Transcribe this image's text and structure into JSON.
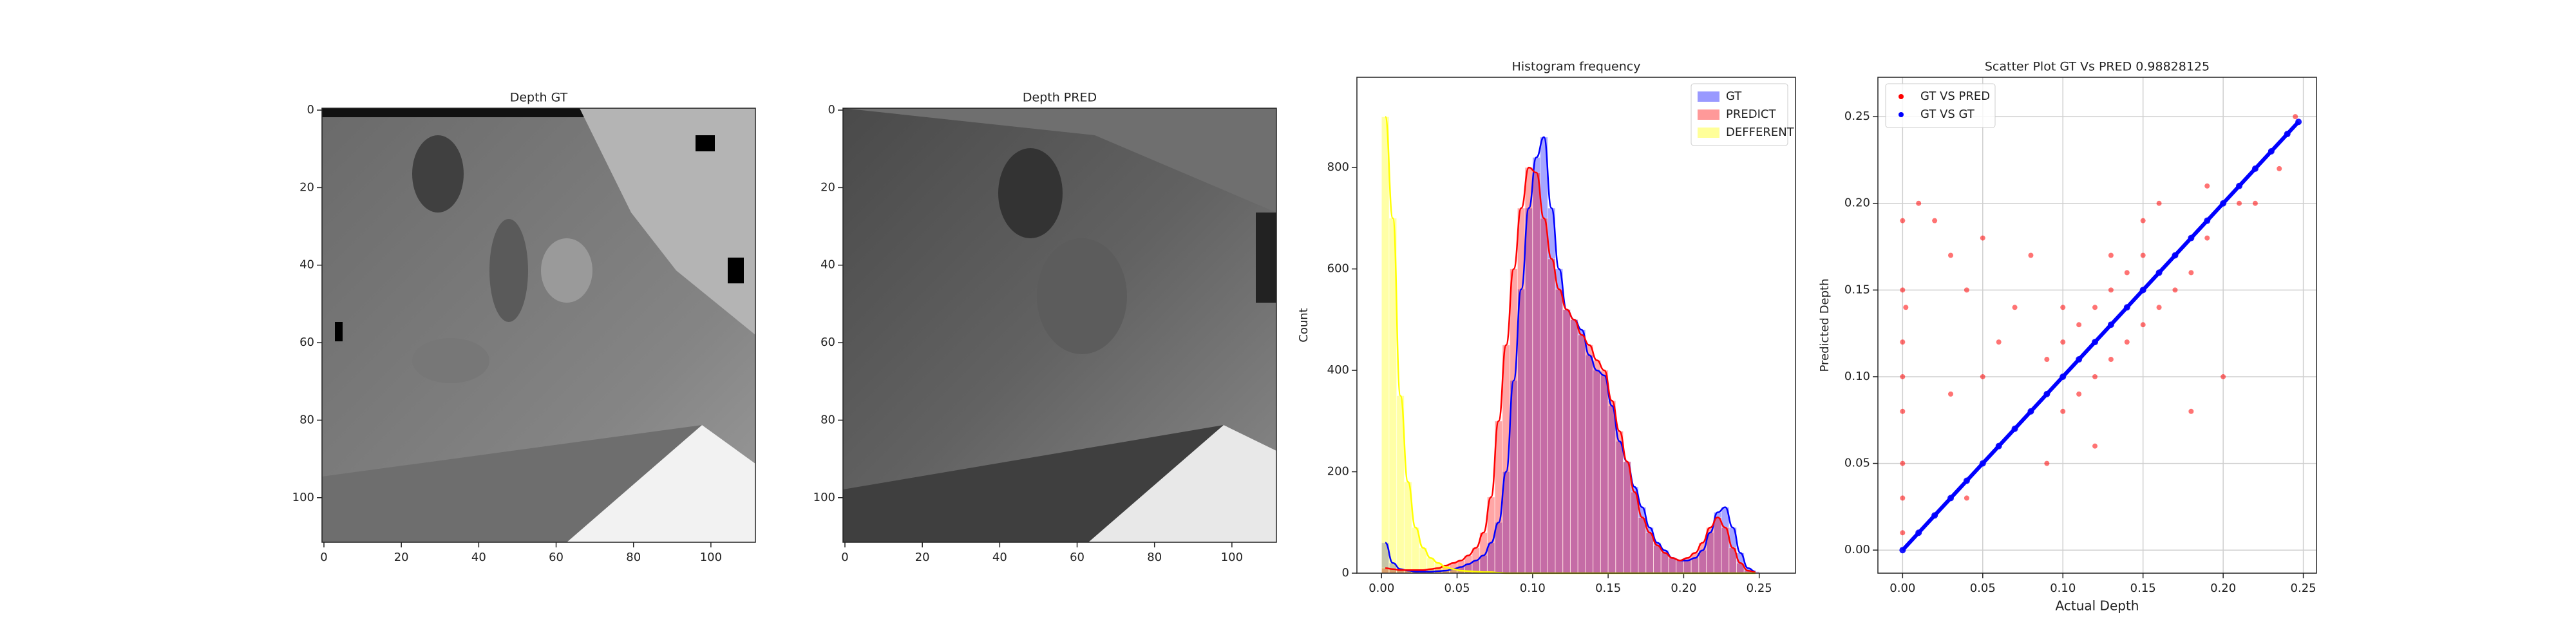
{
  "chart_data": [
    {
      "type": "image",
      "title": "Depth GT",
      "xlim": [
        -0.5,
        111.5
      ],
      "ylim": [
        111.5,
        -0.5
      ],
      "xticks": [
        0,
        20,
        40,
        60,
        80,
        100
      ],
      "yticks": [
        0,
        20,
        40,
        60,
        80,
        100
      ]
    },
    {
      "type": "image",
      "title": "Depth PRED",
      "xlim": [
        -0.5,
        111.5
      ],
      "ylim": [
        111.5,
        -0.5
      ],
      "xticks": [
        0,
        20,
        40,
        60,
        80,
        100
      ],
      "yticks": [
        0,
        20,
        40,
        60,
        80,
        100
      ]
    },
    {
      "type": "histogram",
      "title": "Histogram frequency",
      "ylabel": "Count",
      "legend": "upper right",
      "xlim": [
        -0.0163,
        0.274
      ],
      "ylim": [
        0,
        978
      ],
      "xticks": [
        {
          "value": 0,
          "label": "0.00"
        },
        {
          "value": 0.05,
          "label": "0.05"
        },
        {
          "value": 0.1,
          "label": "0.10"
        },
        {
          "value": 0.15,
          "label": "0.15"
        },
        {
          "value": 0.2,
          "label": "0.20"
        },
        {
          "value": 0.25,
          "label": "0.25"
        }
      ],
      "yticks": [
        0,
        200,
        400,
        600,
        800
      ],
      "bins": [
        0,
        0.005,
        0.01,
        0.015,
        0.02,
        0.025,
        0.03,
        0.035,
        0.04,
        0.045,
        0.05,
        0.055,
        0.06,
        0.065,
        0.07,
        0.075,
        0.08,
        0.085,
        0.09,
        0.095,
        0.1,
        0.105,
        0.11,
        0.115,
        0.12,
        0.125,
        0.13,
        0.135,
        0.14,
        0.145,
        0.15,
        0.155,
        0.16,
        0.165,
        0.17,
        0.175,
        0.18,
        0.185,
        0.19,
        0.195,
        0.2,
        0.205,
        0.21,
        0.215,
        0.22,
        0.225,
        0.23,
        0.235,
        0.24,
        0.245,
        0.25
      ],
      "series": [
        {
          "name": "GT",
          "color": "#0000ff",
          "values": [
            60,
            20,
            8,
            5,
            3,
            3,
            3,
            4,
            5,
            8,
            12,
            18,
            25,
            35,
            60,
            100,
            200,
            380,
            560,
            720,
            820,
            860,
            720,
            600,
            520,
            500,
            480,
            430,
            400,
            390,
            330,
            260,
            220,
            170,
            130,
            90,
            60,
            45,
            30,
            25,
            25,
            30,
            45,
            80,
            120,
            130,
            90,
            40,
            10,
            3
          ]
        },
        {
          "name": "PREDICT",
          "color": "#ff0000",
          "values": [
            10,
            8,
            6,
            6,
            6,
            6,
            8,
            10,
            15,
            20,
            25,
            35,
            50,
            80,
            150,
            300,
            450,
            600,
            720,
            800,
            790,
            700,
            620,
            560,
            520,
            500,
            470,
            450,
            420,
            400,
            340,
            280,
            220,
            160,
            110,
            80,
            55,
            40,
            30,
            25,
            30,
            40,
            60,
            90,
            110,
            90,
            50,
            20,
            5,
            2
          ]
        },
        {
          "name": "DEFFERENT",
          "color": "#ffff00",
          "values": [
            900,
            700,
            350,
            180,
            90,
            50,
            30,
            20,
            12,
            8,
            5,
            4,
            3,
            2,
            2,
            1,
            0,
            0,
            0,
            0,
            0,
            0,
            0,
            0,
            0,
            0,
            0,
            0,
            0,
            0,
            0,
            0,
            0,
            0,
            0,
            0,
            0,
            0,
            0,
            0,
            0,
            0,
            0,
            0,
            0,
            0,
            0,
            0,
            0,
            0
          ]
        }
      ]
    },
    {
      "type": "scatter",
      "title": "Scatter Plot GT Vs PRED 0.98828125",
      "xlabel": "Actual Depth",
      "ylabel": "Predicted Depth",
      "legend": "upper left",
      "grid": true,
      "xlim": [
        -0.0154,
        0.2582
      ],
      "ylim": [
        -0.0133,
        0.2727
      ],
      "xticks": [
        {
          "value": 0,
          "label": "0.00"
        },
        {
          "value": 0.05,
          "label": "0.05"
        },
        {
          "value": 0.1,
          "label": "0.10"
        },
        {
          "value": 0.15,
          "label": "0.15"
        },
        {
          "value": 0.2,
          "label": "0.20"
        },
        {
          "value": 0.25,
          "label": "0.25"
        }
      ],
      "yticks": [
        {
          "value": 0,
          "label": "0.00"
        },
        {
          "value": 0.05,
          "label": "0.05"
        },
        {
          "value": 0.1,
          "label": "0.10"
        },
        {
          "value": 0.15,
          "label": "0.15"
        },
        {
          "value": 0.2,
          "label": "0.20"
        },
        {
          "value": 0.25,
          "label": "0.25"
        }
      ],
      "series": [
        {
          "name": "GT VS PRED",
          "color": "#ff0000",
          "x": [
            0,
            0,
            0,
            0,
            0,
            0,
            0,
            0,
            0.002,
            0.01,
            0.02,
            0.03,
            0.04,
            0.05,
            0.06,
            0.07,
            0.03,
            0.05,
            0.08,
            0.06,
            0.04,
            0.08,
            0.09,
            0.09,
            0.1,
            0.1,
            0.1,
            0.11,
            0.11,
            0.11,
            0.12,
            0.12,
            0.12,
            0.13,
            0.13,
            0.13,
            0.14,
            0.14,
            0.14,
            0.15,
            0.15,
            0.15,
            0.16,
            0.16,
            0.17,
            0.17,
            0.18,
            0.18,
            0.19,
            0.2,
            0.21,
            0.22,
            0.23,
            0.24,
            0.245,
            0.235,
            0.16,
            0.18,
            0.2,
            0.09,
            0.12,
            0.15,
            0.19,
            0.21,
            0.22,
            0.13,
            0.1
          ],
          "values": [
            0.19,
            0.15,
            0.12,
            0.1,
            0.08,
            0.05,
            0.03,
            0.01,
            0.14,
            0.2,
            0.19,
            0.17,
            0.15,
            0.18,
            0.12,
            0.14,
            0.09,
            0.1,
            0.17,
            0.06,
            0.03,
            0.08,
            0.09,
            0.11,
            0.1,
            0.12,
            0.08,
            0.11,
            0.13,
            0.09,
            0.12,
            0.14,
            0.1,
            0.13,
            0.15,
            0.11,
            0.14,
            0.16,
            0.12,
            0.15,
            0.17,
            0.13,
            0.16,
            0.14,
            0.17,
            0.15,
            0.18,
            0.16,
            0.18,
            0.2,
            0.21,
            0.22,
            0.23,
            0.24,
            0.25,
            0.22,
            0.2,
            0.08,
            0.1,
            0.05,
            0.06,
            0.19,
            0.21,
            0.2,
            0.2,
            0.17,
            0.14
          ]
        },
        {
          "name": "GT VS GT",
          "color": "#0000ff",
          "x": [
            0,
            0.01,
            0.02,
            0.03,
            0.04,
            0.05,
            0.06,
            0.07,
            0.08,
            0.09,
            0.1,
            0.11,
            0.12,
            0.13,
            0.14,
            0.15,
            0.16,
            0.17,
            0.18,
            0.19,
            0.2,
            0.21,
            0.22,
            0.23,
            0.24,
            0.247
          ],
          "values": [
            0,
            0.01,
            0.02,
            0.03,
            0.04,
            0.05,
            0.06,
            0.07,
            0.08,
            0.09,
            0.1,
            0.11,
            0.12,
            0.13,
            0.14,
            0.15,
            0.16,
            0.17,
            0.18,
            0.19,
            0.2,
            0.21,
            0.22,
            0.23,
            0.24,
            0.247
          ]
        }
      ]
    }
  ]
}
